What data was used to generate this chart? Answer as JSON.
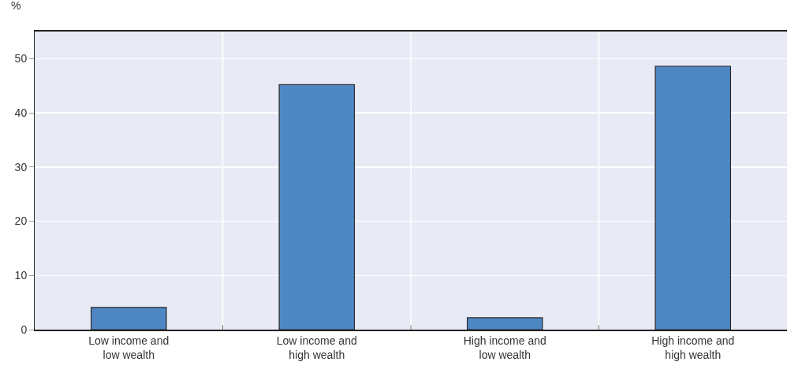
{
  "chart_data": {
    "type": "bar",
    "ylabel": "%",
    "categories": [
      "Low income and low wealth",
      "Low income and high wealth",
      "High income and low wealth",
      "High income and high wealth"
    ],
    "values": [
      4.1,
      45.2,
      2.2,
      48.6
    ],
    "color": "#4f87c5",
    "ylim": [
      0,
      55
    ],
    "yticks": [
      0,
      10,
      20,
      30,
      40,
      50
    ],
    "grid": true,
    "legend": false
  }
}
